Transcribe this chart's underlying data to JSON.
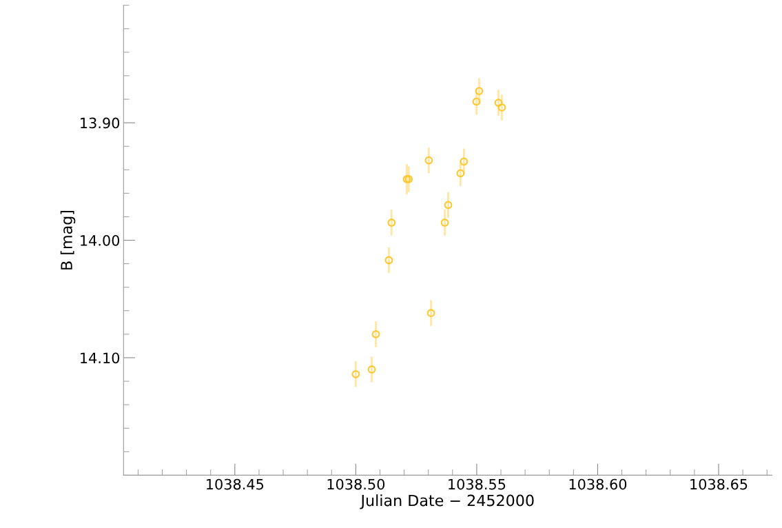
{
  "chart_data": {
    "type": "scatter",
    "xlabel": "Julian Date − 2452000",
    "ylabel": "B [mag]",
    "x": [
      1038.5,
      1038.5066,
      1038.5083,
      1038.5137,
      1038.5148,
      1038.5211,
      1038.5219,
      1038.5302,
      1038.5311,
      1038.5368,
      1038.5382,
      1038.5433,
      1038.5447,
      1038.5499,
      1038.551,
      1038.559,
      1038.5604
    ],
    "series": [
      {
        "color": "#ffc830",
        "values": [
          14.114,
          14.11,
          14.08,
          14.017,
          13.985,
          13.948,
          13.948,
          13.932,
          14.062,
          13.985,
          13.97,
          13.943,
          13.933,
          13.882,
          13.873,
          13.883,
          13.887
        ],
        "errors": [
          0.011,
          0.011,
          0.011,
          0.011,
          0.011,
          0.013,
          0.011,
          0.011,
          0.011,
          0.011,
          0.011,
          0.011,
          0.011,
          0.011,
          0.011,
          0.011,
          0.011
        ]
      }
    ],
    "xlim": [
      1038.404,
      1038.672
    ],
    "ylim": [
      14.2,
      13.8
    ],
    "xticks": [
      {
        "value": 1038.45,
        "label": "1038.45"
      },
      {
        "value": 1038.5,
        "label": "1038.50"
      },
      {
        "value": 1038.55,
        "label": "1038.55"
      },
      {
        "value": 1038.6,
        "label": "1038.60"
      },
      {
        "value": 1038.65,
        "label": "1038.65"
      }
    ],
    "yticks": [
      {
        "value": 13.9,
        "label": "13.90"
      },
      {
        "value": 14.0,
        "label": "14.00"
      },
      {
        "value": 14.1,
        "label": "14.10"
      }
    ],
    "marker": "circle",
    "grid": false
  }
}
